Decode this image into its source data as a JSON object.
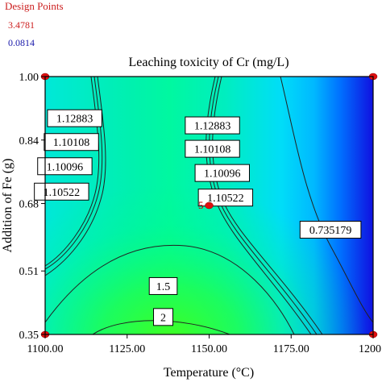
{
  "legend": {
    "heading": "Design Points",
    "high_value": "3.4781",
    "low_value": "0.0814",
    "heading_color": "#cc2020",
    "high_color": "#cc2020",
    "low_color": "#1818aa"
  },
  "chart_data": {
    "type": "heatmap",
    "subtype": "contour",
    "title": "Leaching toxicity of Cr (mg/L)",
    "xlabel": "Temperature (°C)",
    "ylabel": "Addition of Fe (g)",
    "xlim": [
      1100,
      1200
    ],
    "ylim": [
      0.35,
      1.0
    ],
    "x_ticks": [
      "1100.00",
      "1125.00",
      "1150.00",
      "1175.00",
      "1200"
    ],
    "y_ticks": [
      "0.35",
      "0.51",
      "0.68",
      "0.84",
      "1.00"
    ],
    "y_tick_values": [
      0.35,
      0.51,
      0.68,
      0.84,
      1.0
    ],
    "x_tick_values": [
      1100,
      1125,
      1150,
      1175,
      1200
    ],
    "grid": false,
    "colormap": [
      "#1010e0",
      "#00e8ff",
      "#00ff60"
    ],
    "contour_labels": [
      {
        "text": "1.12883",
        "x": 1109,
        "y": 0.895
      },
      {
        "text": "1.10108",
        "x": 1108,
        "y": 0.835
      },
      {
        "text": "1.10096",
        "x": 1106,
        "y": 0.774
      },
      {
        "text": "1.10522",
        "x": 1105,
        "y": 0.71
      },
      {
        "text": "1.12883",
        "x": 1151,
        "y": 0.877
      },
      {
        "text": "1.10108",
        "x": 1151,
        "y": 0.818
      },
      {
        "text": "1.10096",
        "x": 1154,
        "y": 0.757
      },
      {
        "text": "1.10522",
        "x": 1155,
        "y": 0.695
      },
      {
        "text": "0.735179",
        "x": 1187,
        "y": 0.614
      },
      {
        "text": "1.5",
        "x": 1136,
        "y": 0.472
      },
      {
        "text": "2",
        "x": 1136,
        "y": 0.394
      }
    ],
    "design_points": [
      {
        "x": 1100,
        "y": 1.0
      },
      {
        "x": 1200,
        "y": 1.0
      },
      {
        "x": 1100,
        "y": 0.35
      },
      {
        "x": 1200,
        "y": 0.35
      },
      {
        "x": 1150,
        "y": 0.675,
        "label": "5"
      }
    ]
  }
}
